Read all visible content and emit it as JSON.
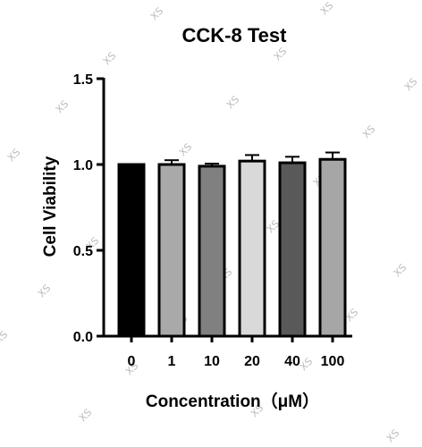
{
  "chart_data": {
    "type": "bar",
    "title": "CCK-8 Test",
    "xlabel": "Concentration（μM）",
    "ylabel": "Cell Viability",
    "categories": [
      "0",
      "1",
      "10",
      "20",
      "40",
      "100"
    ],
    "values": [
      1.0,
      1.0,
      0.99,
      1.02,
      1.01,
      1.03
    ],
    "errors": [
      0,
      0.025,
      0.015,
      0.035,
      0.035,
      0.04
    ],
    "ylim": [
      0,
      1.5
    ],
    "yticks": [
      "0.0",
      "0.5",
      "1.0",
      "1.5"
    ],
    "bar_colors": [
      "#000000",
      "#a9a9a9",
      "#808080",
      "#d9d9d9",
      "#595959",
      "#a6a6a6"
    ],
    "grid": false,
    "legend": "none"
  },
  "watermark": "XS"
}
